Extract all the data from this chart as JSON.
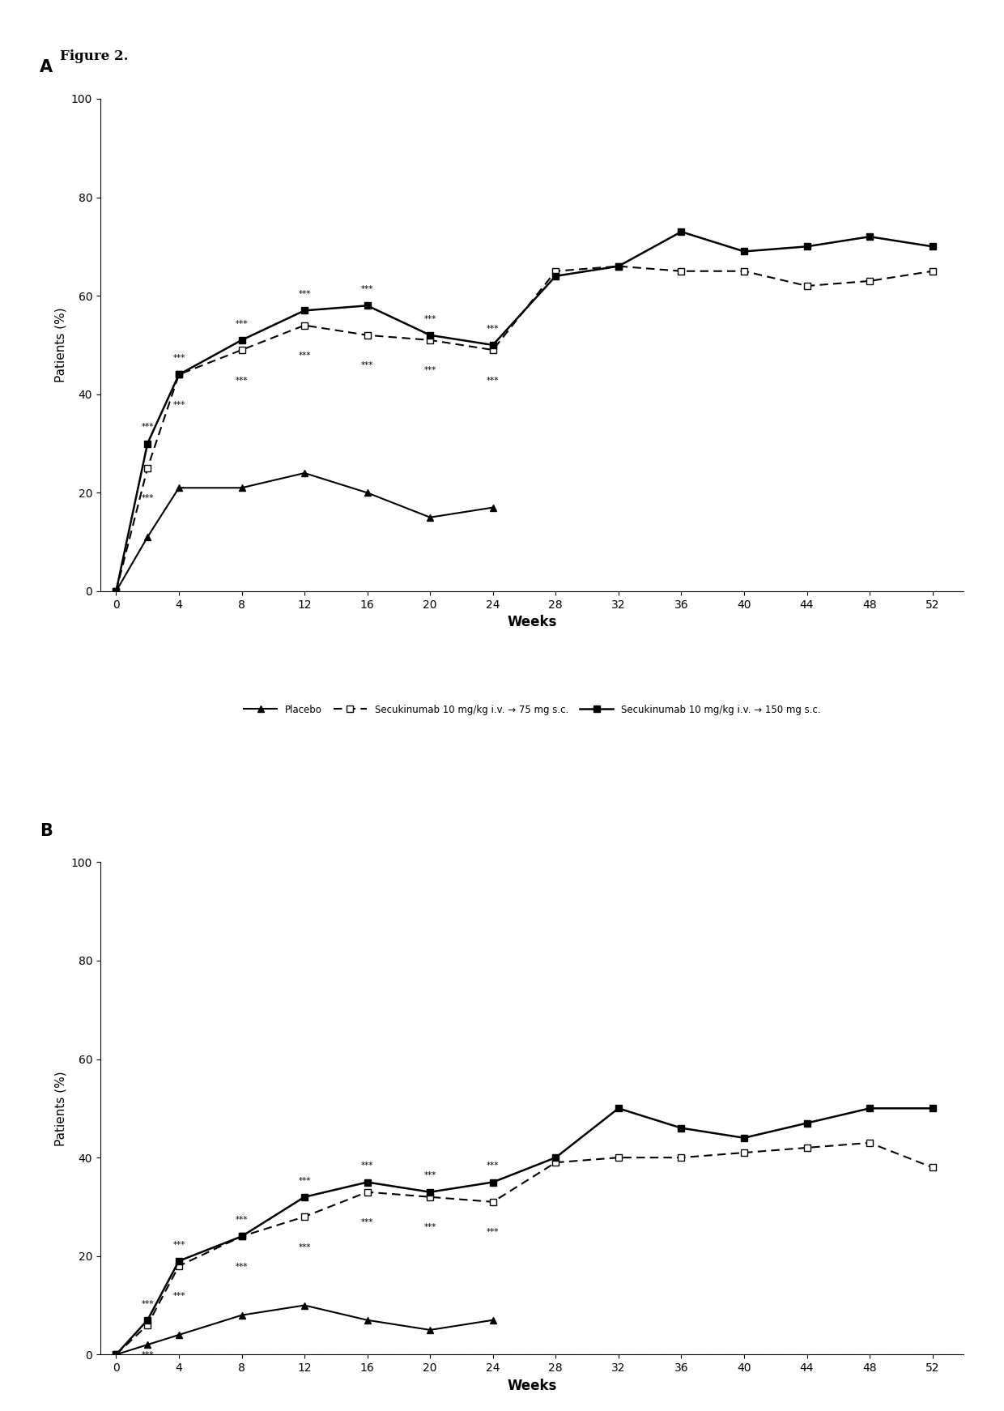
{
  "weeks": [
    0,
    2,
    4,
    8,
    12,
    16,
    20,
    24,
    28,
    32,
    36,
    40,
    44,
    48,
    52
  ],
  "panel_A": {
    "placebo": [
      0,
      11,
      21,
      21,
      24,
      20,
      15,
      17,
      null,
      null,
      null,
      null,
      null,
      null,
      null
    ],
    "secu_75": [
      0,
      25,
      44,
      49,
      54,
      52,
      51,
      49,
      65,
      66,
      65,
      65,
      62,
      63,
      65
    ],
    "secu_150": [
      0,
      30,
      44,
      51,
      57,
      58,
      52,
      50,
      64,
      66,
      73,
      69,
      70,
      72,
      70
    ]
  },
  "panel_B": {
    "placebo": [
      0,
      2,
      4,
      8,
      10,
      7,
      5,
      7,
      null,
      null,
      null,
      null,
      null,
      null,
      null
    ],
    "secu_75": [
      0,
      6,
      18,
      24,
      28,
      33,
      32,
      31,
      39,
      40,
      40,
      41,
      42,
      43,
      38
    ],
    "secu_150": [
      0,
      7,
      19,
      24,
      32,
      35,
      33,
      35,
      40,
      50,
      46,
      44,
      47,
      50,
      50
    ]
  },
  "star_weeks": [
    2,
    4,
    8,
    12,
    16,
    20,
    24
  ],
  "figure_label": "Figure 2.",
  "xlabel": "Weeks",
  "ylabel": "Patients (%)",
  "ylim": [
    0,
    100
  ],
  "yticks": [
    0,
    20,
    40,
    60,
    80,
    100
  ],
  "xticks": [
    0,
    4,
    8,
    12,
    16,
    20,
    24,
    28,
    32,
    36,
    40,
    44,
    48,
    52
  ],
  "panel_labels": [
    "A",
    "B"
  ],
  "legend_placebo": "Placebo",
  "legend_75": "Secukinumab 10 mg/kg i.v. → 75 mg s.c.",
  "legend_150": "Secukinumab 10 mg/kg i.v. → 150 mg s.c."
}
